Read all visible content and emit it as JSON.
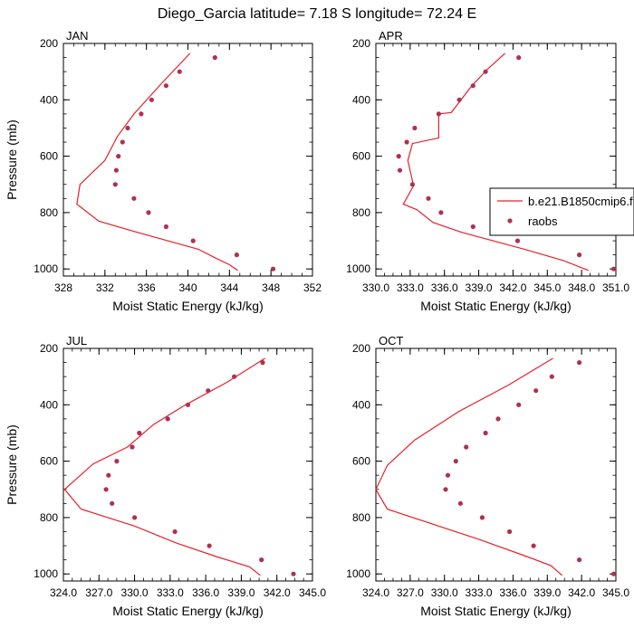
{
  "title": "Diego_Garcia  latitude= 7.18 S longitude= 72.24 E",
  "colors": {
    "model": "#e8202a",
    "obs": "#b03050",
    "frame": "#000000"
  },
  "legend": {
    "model_label": "b.e21.B1850cmip6.f",
    "obs_label": "raobs",
    "placement": "right of APR panel"
  },
  "chart_data": [
    {
      "type": "line",
      "panel": "JAN",
      "xlabel": "Moist Static Energy (kJ/kg)",
      "ylabel": "Pressure (mb)",
      "xlim": [
        328,
        352
      ],
      "xticks": [
        328,
        332,
        336,
        340,
        344,
        348,
        352
      ],
      "xtick_labels": [
        "328",
        "332",
        "336",
        "340",
        "344",
        "348",
        "352"
      ],
      "ylim": [
        200,
        1025
      ],
      "yticks": [
        200,
        400,
        600,
        800,
        1000
      ],
      "ytick_labels": [
        "200",
        "400",
        "600",
        "800",
        "1000"
      ],
      "series": [
        {
          "name": "b.e21.B1850cmip6.f",
          "kind": "line",
          "points": [
            [
              340.2,
              235
            ],
            [
              337.5,
              340
            ],
            [
              334.8,
              450
            ],
            [
              333.2,
              530
            ],
            [
              332.0,
              615
            ],
            [
              329.6,
              700
            ],
            [
              329.3,
              770
            ],
            [
              331.4,
              830
            ],
            [
              335.1,
              870
            ],
            [
              341.0,
              930
            ],
            [
              342.6,
              960
            ],
            [
              344.0,
              985
            ],
            [
              344.8,
              1005
            ]
          ]
        },
        {
          "name": "raobs",
          "kind": "scatter",
          "points": [
            [
              342.6,
              250
            ],
            [
              339.2,
              300
            ],
            [
              337.9,
              350
            ],
            [
              336.5,
              400
            ],
            [
              335.5,
              450
            ],
            [
              334.2,
              500
            ],
            [
              333.7,
              550
            ],
            [
              333.3,
              600
            ],
            [
              333.1,
              650
            ],
            [
              333.0,
              700
            ],
            [
              334.8,
              750
            ],
            [
              336.2,
              800
            ],
            [
              337.9,
              850
            ],
            [
              340.5,
              900
            ],
            [
              344.7,
              950
            ],
            [
              348.2,
              1000
            ]
          ]
        }
      ]
    },
    {
      "type": "line",
      "panel": "APR",
      "xlabel": "Moist Static Energy (kJ/kg)",
      "ylabel": "",
      "xlim": [
        330,
        351
      ],
      "xticks": [
        330,
        333,
        336,
        339,
        342,
        345,
        348,
        351
      ],
      "xtick_labels": [
        "330.0",
        "333.0",
        "336.0",
        "339.0",
        "342.0",
        "345.0",
        "348.0",
        "351.0"
      ],
      "ylim": [
        200,
        1025
      ],
      "yticks": [
        200,
        400,
        600,
        800,
        1000
      ],
      "ytick_labels": [
        "200",
        "400",
        "600",
        "800",
        "1000"
      ],
      "series": [
        {
          "name": "b.e21.B1850cmip6.f",
          "kind": "line",
          "points": [
            [
              341.3,
              235
            ],
            [
              339.8,
              290
            ],
            [
              338.4,
              350
            ],
            [
              336.6,
              445
            ],
            [
              335.5,
              450
            ],
            [
              335.5,
              535
            ],
            [
              333.2,
              555
            ],
            [
              332.8,
              615
            ],
            [
              333.3,
              705
            ],
            [
              332.4,
              770
            ],
            [
              333.6,
              790
            ],
            [
              335.0,
              835
            ],
            [
              337.5,
              870
            ],
            [
              343.0,
              930
            ],
            [
              346.4,
              970
            ],
            [
              348.6,
              1005
            ]
          ]
        },
        {
          "name": "raobs",
          "kind": "scatter",
          "points": [
            [
              342.5,
              250
            ],
            [
              339.6,
              300
            ],
            [
              338.5,
              350
            ],
            [
              337.3,
              400
            ],
            [
              335.5,
              450
            ],
            [
              333.4,
              500
            ],
            [
              332.7,
              550
            ],
            [
              332.0,
              600
            ],
            [
              332.1,
              650
            ],
            [
              333.2,
              700
            ],
            [
              334.6,
              750
            ],
            [
              335.7,
              800
            ],
            [
              338.5,
              850
            ],
            [
              342.4,
              900
            ],
            [
              347.8,
              950
            ],
            [
              350.8,
              1000
            ]
          ]
        }
      ]
    },
    {
      "type": "line",
      "panel": "JUL",
      "xlabel": "Moist Static Energy (kJ/kg)",
      "ylabel": "Pressure (mb)",
      "xlim": [
        324,
        345
      ],
      "xticks": [
        324,
        327,
        330,
        333,
        336,
        339,
        342,
        345
      ],
      "xtick_labels": [
        "324.0",
        "327.0",
        "330.0",
        "333.0",
        "336.0",
        "339.0",
        "342.0",
        "345.0"
      ],
      "ylim": [
        200,
        1025
      ],
      "yticks": [
        200,
        400,
        600,
        800,
        1000
      ],
      "ytick_labels": [
        "200",
        "400",
        "600",
        "800",
        "1000"
      ],
      "series": [
        {
          "name": "b.e21.B1850cmip6.f",
          "kind": "line",
          "points": [
            [
              341.0,
              235
            ],
            [
              337.8,
              320
            ],
            [
              334.3,
              400
            ],
            [
              331.6,
              470
            ],
            [
              329.4,
              550
            ],
            [
              326.5,
              610
            ],
            [
              324.1,
              700
            ],
            [
              325.5,
              770
            ],
            [
              330.0,
              830
            ],
            [
              333.5,
              890
            ],
            [
              337.0,
              940
            ],
            [
              339.7,
              975
            ],
            [
              340.6,
              1005
            ]
          ]
        },
        {
          "name": "raobs",
          "kind": "scatter",
          "points": [
            [
              340.8,
              250
            ],
            [
              338.4,
              300
            ],
            [
              336.2,
              350
            ],
            [
              334.5,
              400
            ],
            [
              332.8,
              450
            ],
            [
              330.4,
              500
            ],
            [
              329.8,
              550
            ],
            [
              328.5,
              600
            ],
            [
              327.8,
              650
            ],
            [
              327.6,
              700
            ],
            [
              328.1,
              750
            ],
            [
              330.0,
              800
            ],
            [
              333.4,
              850
            ],
            [
              336.3,
              900
            ],
            [
              340.7,
              950
            ],
            [
              343.4,
              1000
            ]
          ]
        }
      ]
    },
    {
      "type": "line",
      "panel": "OCT",
      "xlabel": "Moist Static Energy (kJ/kg)",
      "ylabel": "",
      "xlim": [
        324,
        345
      ],
      "xticks": [
        324,
        327,
        330,
        333,
        336,
        339,
        342,
        345
      ],
      "xtick_labels": [
        "324.0",
        "327.0",
        "330.0",
        "333.0",
        "336.0",
        "339.0",
        "342.0",
        "345.0"
      ],
      "ylim": [
        200,
        1025
      ],
      "yticks": [
        200,
        400,
        600,
        800,
        1000
      ],
      "ytick_labels": [
        "200",
        "400",
        "600",
        "800",
        "1000"
      ],
      "series": [
        {
          "name": "b.e21.B1850cmip6.f",
          "kind": "line",
          "points": [
            [
              339.5,
              235
            ],
            [
              335.6,
              330
            ],
            [
              331.2,
              425
            ],
            [
              327.4,
              525
            ],
            [
              325.0,
              615
            ],
            [
              324.0,
              700
            ],
            [
              325.0,
              770
            ],
            [
              329.5,
              830
            ],
            [
              333.2,
              880
            ],
            [
              337.0,
              935
            ],
            [
              339.3,
              970
            ],
            [
              340.3,
              1005
            ]
          ]
        },
        {
          "name": "raobs",
          "kind": "scatter",
          "points": [
            [
              341.8,
              250
            ],
            [
              339.4,
              300
            ],
            [
              338.0,
              350
            ],
            [
              336.5,
              400
            ],
            [
              334.7,
              450
            ],
            [
              333.6,
              500
            ],
            [
              331.9,
              550
            ],
            [
              331.0,
              600
            ],
            [
              330.3,
              650
            ],
            [
              330.1,
              700
            ],
            [
              331.4,
              750
            ],
            [
              333.3,
              800
            ],
            [
              335.7,
              850
            ],
            [
              337.8,
              900
            ],
            [
              341.8,
              950
            ],
            [
              344.8,
              1000
            ]
          ]
        }
      ]
    }
  ]
}
